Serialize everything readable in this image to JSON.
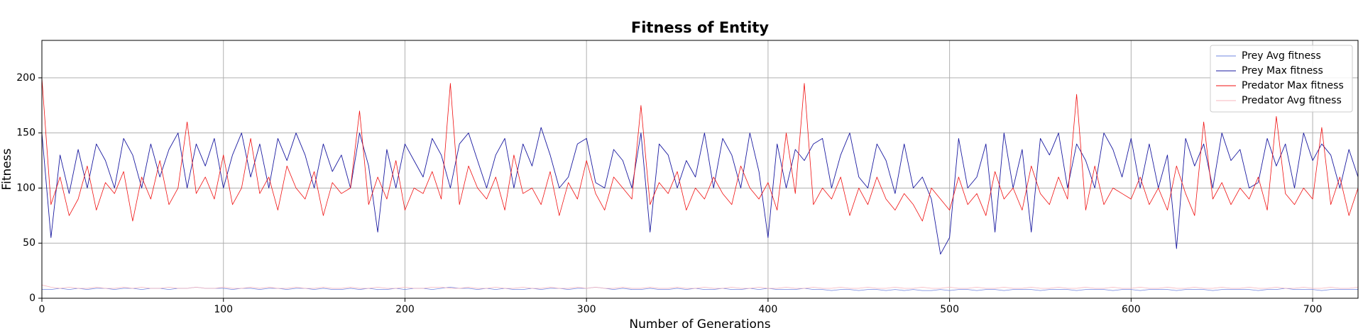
{
  "chart_data": {
    "type": "line",
    "title": "Fitness of Entity",
    "x_label": "Number of Generations",
    "y_label": "Fitness",
    "xlim": [
      0,
      725
    ],
    "ylim": [
      0,
      234
    ],
    "xticks": [
      0,
      100,
      200,
      300,
      400,
      500,
      600,
      700
    ],
    "yticks": [
      0,
      50,
      100,
      150,
      200
    ],
    "grid": true,
    "legend": "upper right",
    "x": [
      0,
      5,
      10,
      15,
      20,
      25,
      30,
      35,
      40,
      45,
      50,
      55,
      60,
      65,
      70,
      75,
      80,
      85,
      90,
      95,
      100,
      105,
      110,
      115,
      120,
      125,
      130,
      135,
      140,
      145,
      150,
      155,
      160,
      165,
      170,
      175,
      180,
      185,
      190,
      195,
      200,
      205,
      210,
      215,
      220,
      225,
      230,
      235,
      240,
      245,
      250,
      255,
      260,
      265,
      270,
      275,
      280,
      285,
      290,
      295,
      300,
      305,
      310,
      315,
      320,
      325,
      330,
      335,
      340,
      345,
      350,
      355,
      360,
      365,
      370,
      375,
      380,
      385,
      390,
      395,
      400,
      405,
      410,
      415,
      420,
      425,
      430,
      435,
      440,
      445,
      450,
      455,
      460,
      465,
      470,
      475,
      480,
      485,
      490,
      495,
      500,
      505,
      510,
      515,
      520,
      525,
      530,
      535,
      540,
      545,
      550,
      555,
      560,
      565,
      570,
      575,
      580,
      585,
      590,
      595,
      600,
      605,
      610,
      615,
      620,
      625,
      630,
      635,
      640,
      645,
      650,
      655,
      660,
      665,
      670,
      675,
      680,
      685,
      690,
      695,
      700,
      705,
      710,
      715,
      720,
      725
    ],
    "series": [
      {
        "name": "Prey Avg fitness",
        "color": "#6f84e0",
        "width": 0.8,
        "values": [
          8,
          8,
          9,
          8,
          9,
          8,
          9,
          9,
          8,
          9,
          9,
          8,
          9,
          9,
          8,
          9,
          9,
          10,
          9,
          9,
          9,
          8,
          9,
          9,
          8,
          9,
          9,
          8,
          9,
          9,
          8,
          9,
          8,
          8,
          9,
          8,
          9,
          8,
          8,
          9,
          8,
          9,
          9,
          8,
          9,
          10,
          9,
          9,
          8,
          9,
          8,
          9,
          8,
          8,
          9,
          8,
          9,
          9,
          8,
          9,
          9,
          10,
          9,
          8,
          9,
          8,
          8,
          9,
          8,
          8,
          9,
          8,
          9,
          8,
          8,
          9,
          8,
          8,
          9,
          8,
          9,
          8,
          8,
          8,
          9,
          8,
          8,
          7,
          8,
          8,
          7,
          8,
          8,
          7,
          8,
          7,
          8,
          7,
          7,
          8,
          7,
          8,
          8,
          7,
          8,
          8,
          7,
          8,
          8,
          8,
          7,
          8,
          8,
          8,
          7,
          8,
          8,
          8,
          7,
          8,
          8,
          7,
          8,
          8,
          8,
          7,
          8,
          8,
          8,
          7,
          8,
          8,
          8,
          8,
          7,
          8,
          8,
          9,
          8,
          8,
          8,
          7,
          8,
          8,
          8,
          8
        ]
      },
      {
        "name": "Prey Max fitness",
        "color": "#1a1aa0",
        "width": 0.9,
        "values": [
          150,
          55,
          130,
          95,
          135,
          100,
          140,
          125,
          100,
          145,
          130,
          100,
          140,
          110,
          135,
          150,
          100,
          140,
          120,
          145,
          100,
          130,
          150,
          110,
          140,
          100,
          145,
          125,
          150,
          130,
          100,
          140,
          115,
          130,
          100,
          150,
          120,
          60,
          135,
          100,
          140,
          125,
          110,
          145,
          130,
          100,
          140,
          150,
          125,
          100,
          130,
          145,
          100,
          140,
          120,
          155,
          130,
          100,
          110,
          140,
          145,
          105,
          100,
          135,
          125,
          100,
          150,
          60,
          140,
          130,
          100,
          125,
          110,
          150,
          100,
          145,
          130,
          100,
          150,
          115,
          55,
          140,
          100,
          135,
          125,
          140,
          145,
          100,
          130,
          150,
          110,
          100,
          140,
          125,
          95,
          140,
          100,
          110,
          90,
          40,
          55,
          145,
          100,
          110,
          140,
          60,
          150,
          100,
          135,
          60,
          145,
          130,
          150,
          100,
          140,
          125,
          100,
          150,
          135,
          110,
          145,
          100,
          140,
          100,
          130,
          45,
          145,
          120,
          140,
          100,
          150,
          125,
          135,
          100,
          105,
          145,
          120,
          140,
          100,
          150,
          125,
          140,
          130,
          100,
          135,
          110
        ]
      },
      {
        "name": "Predator Max fitness",
        "color": "#f01010",
        "width": 0.8,
        "values": [
          200,
          85,
          110,
          75,
          90,
          120,
          80,
          105,
          95,
          115,
          70,
          110,
          90,
          125,
          85,
          100,
          160,
          95,
          110,
          90,
          130,
          85,
          100,
          145,
          95,
          110,
          80,
          120,
          100,
          90,
          115,
          75,
          105,
          95,
          100,
          170,
          85,
          110,
          90,
          125,
          80,
          100,
          95,
          115,
          90,
          195,
          85,
          120,
          100,
          90,
          110,
          80,
          130,
          95,
          100,
          85,
          115,
          75,
          105,
          90,
          125,
          95,
          80,
          110,
          100,
          90,
          175,
          85,
          105,
          95,
          115,
          80,
          100,
          90,
          110,
          95,
          85,
          120,
          100,
          90,
          105,
          80,
          150,
          95,
          195,
          85,
          100,
          90,
          110,
          75,
          100,
          85,
          110,
          90,
          80,
          95,
          85,
          70,
          100,
          90,
          80,
          110,
          85,
          95,
          75,
          115,
          90,
          100,
          80,
          120,
          95,
          85,
          110,
          90,
          185,
          80,
          120,
          85,
          100,
          95,
          90,
          110,
          85,
          100,
          80,
          120,
          95,
          75,
          160,
          90,
          105,
          85,
          100,
          90,
          110,
          80,
          165,
          95,
          85,
          100,
          90,
          155,
          85,
          110,
          75,
          100
        ]
      },
      {
        "name": "Predator Avg fitness",
        "color": "#f7b4bc",
        "width": 0.8,
        "values": [
          12,
          10,
          9,
          10,
          9,
          9,
          10,
          9,
          9,
          10,
          9,
          10,
          9,
          9,
          10,
          9,
          9,
          10,
          9,
          9,
          10,
          9,
          9,
          10,
          9,
          10,
          9,
          9,
          10,
          9,
          9,
          10,
          9,
          9,
          10,
          9,
          9,
          10,
          9,
          9,
          10,
          9,
          9,
          10,
          10,
          9,
          9,
          10,
          9,
          9,
          10,
          9,
          9,
          10,
          9,
          9,
          10,
          9,
          9,
          10,
          9,
          10,
          9,
          9,
          10,
          9,
          9,
          10,
          9,
          9,
          10,
          9,
          9,
          10,
          9,
          9,
          10,
          9,
          9,
          10,
          9,
          9,
          10,
          9,
          9,
          10,
          9,
          9,
          10,
          9,
          9,
          10,
          9,
          9,
          10,
          9,
          9,
          10,
          9,
          9,
          10,
          9,
          9,
          10,
          9,
          9,
          10,
          9,
          9,
          10,
          9,
          9,
          10,
          9,
          9,
          10,
          9,
          9,
          10,
          9,
          9,
          10,
          9,
          9,
          10,
          9,
          9,
          10,
          9,
          9,
          10,
          9,
          9,
          10,
          9,
          9,
          10,
          9,
          9,
          10,
          9,
          9,
          10,
          9,
          9,
          10
        ]
      }
    ]
  }
}
